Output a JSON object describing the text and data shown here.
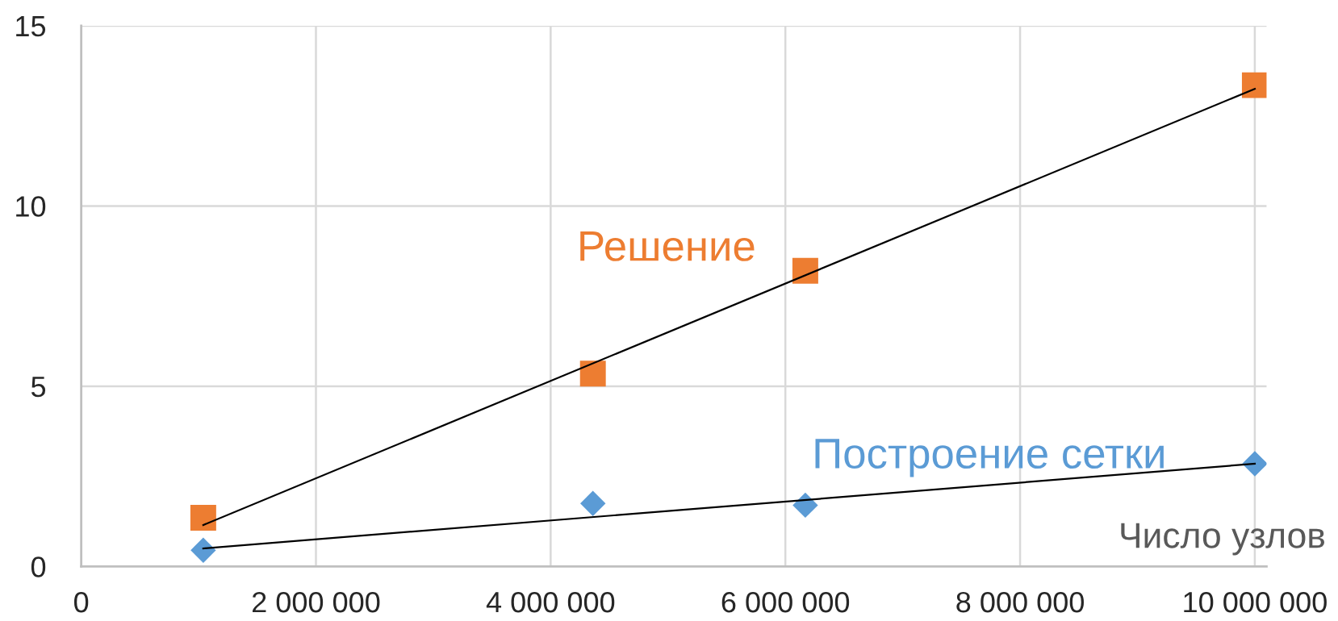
{
  "chart_data": {
    "type": "scatter",
    "xlabel": "Число узлов",
    "xlim": [
      0,
      10100000
    ],
    "xticks": [
      0,
      {
        "value": 2000000,
        "label": "2 000 000"
      },
      {
        "value": 4000000,
        "label": "4 000 000"
      },
      {
        "value": 6000000,
        "label": "6 000 000"
      },
      {
        "value": 8000000,
        "label": "8 000 000"
      },
      {
        "value": 10000000,
        "label": "10 000 000"
      }
    ],
    "ylim": [
      0,
      15
    ],
    "yticks": [
      0,
      5,
      10,
      15
    ],
    "grid": true,
    "series": [
      {
        "name": "Построение сетки",
        "color": "#5b9bd5",
        "marker": "diamond",
        "x": [
          1040000,
          4360000,
          6170000,
          10000000
        ],
        "values": [
          0.45,
          1.75,
          1.7,
          2.85
        ]
      },
      {
        "name": "Решение",
        "color": "#ed7d31",
        "marker": "square",
        "x": [
          1040000,
          4360000,
          6170000,
          10000000
        ],
        "values": [
          1.35,
          5.35,
          8.2,
          13.35
        ]
      },
      {
        "type": "line",
        "color": "#000000",
        "x": [
          1040000,
          10000000
        ],
        "values": [
          0.5,
          2.85
        ]
      },
      {
        "type": "line",
        "color": "#000000",
        "x": [
          1040000,
          10000000
        ],
        "values": [
          1.15,
          13.25
        ]
      }
    ]
  }
}
